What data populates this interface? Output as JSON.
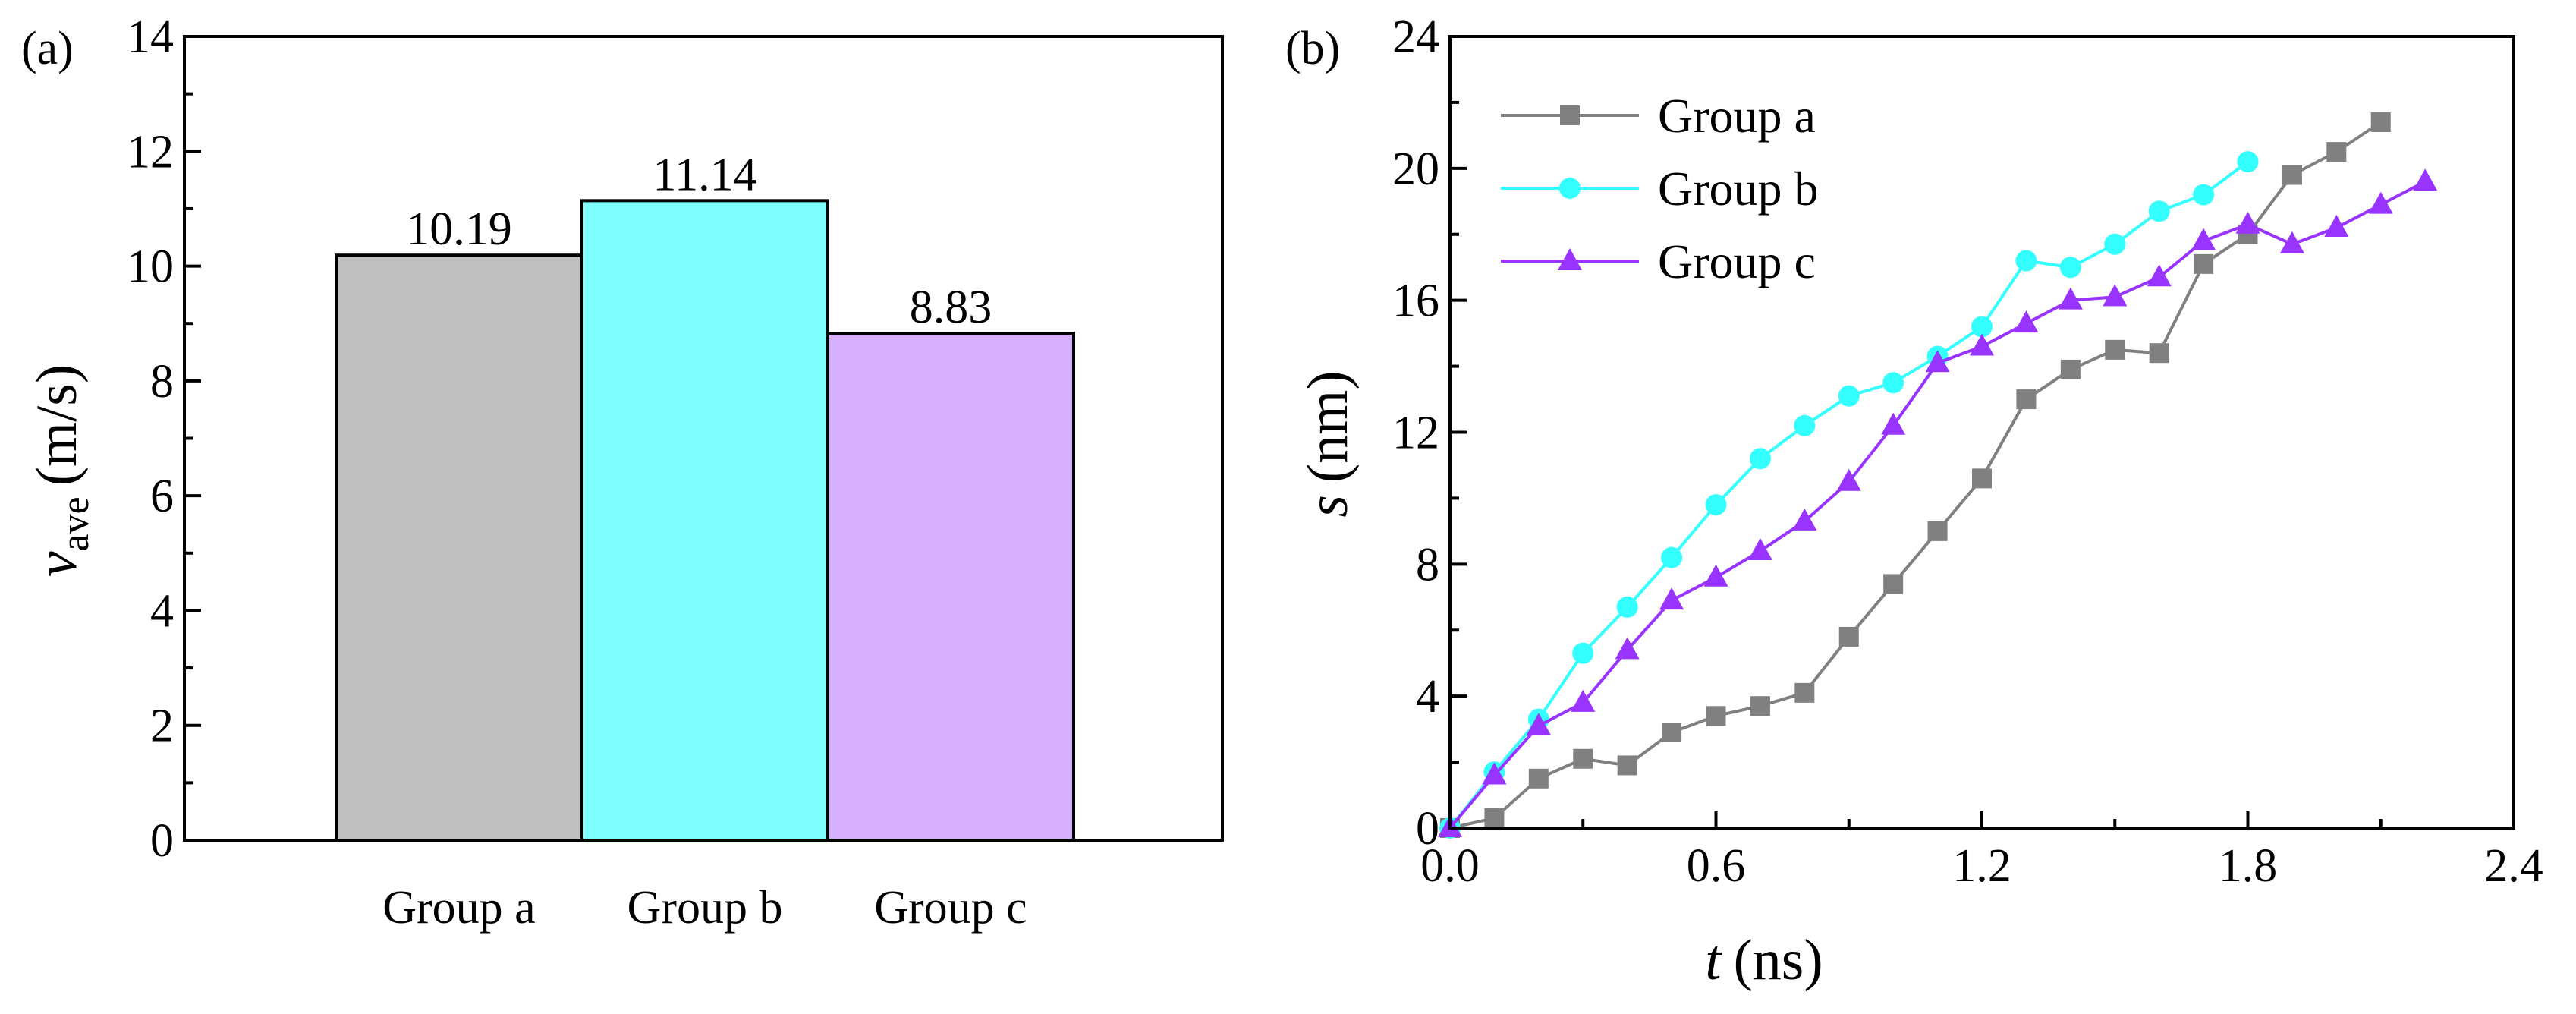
{
  "chart_data": [
    {
      "type": "bar",
      "panel_label": "(a)",
      "categories": [
        "Group a",
        "Group b",
        "Group c"
      ],
      "values": [
        10.19,
        11.14,
        8.83
      ],
      "value_labels": [
        "10.19",
        "11.14",
        "8.83"
      ],
      "colors": [
        "#c0c0c0",
        "#80ffff",
        "#d6b0ff"
      ],
      "ylabel_main": "v",
      "ylabel_sub": "ave",
      "ylabel_unit": "(m/s)",
      "ylim": [
        0,
        14
      ],
      "yticks": [
        "0",
        "2",
        "4",
        "6",
        "8",
        "10",
        "12",
        "14"
      ],
      "yticks_values": [
        0,
        2,
        4,
        6,
        8,
        10,
        12,
        14
      ]
    },
    {
      "type": "line",
      "panel_label": "(b)",
      "xlabel_var": "t",
      "xlabel_unit": "(ns)",
      "ylabel_var": "s",
      "ylabel_unit": "(nm)",
      "xlim": [
        0,
        2.4
      ],
      "ylim": [
        0,
        24
      ],
      "xticks": [
        "0.0",
        "0.6",
        "1.2",
        "1.8",
        "2.4"
      ],
      "xticks_values": [
        0,
        0.6,
        1.2,
        1.8,
        2.4
      ],
      "yticks": [
        "0",
        "4",
        "8",
        "12",
        "16",
        "20",
        "24"
      ],
      "yticks_values": [
        0,
        4,
        8,
        12,
        16,
        20,
        24
      ],
      "legend_position": "top-left",
      "series": [
        {
          "name": "Group a",
          "marker": "square",
          "color": "#808080",
          "x": [
            0,
            0.1,
            0.2,
            0.3,
            0.4,
            0.5,
            0.6,
            0.7,
            0.8,
            0.9,
            1.0,
            1.1,
            1.2,
            1.3,
            1.4,
            1.5,
            1.6,
            1.7,
            1.8,
            1.9,
            2.0,
            2.1
          ],
          "y": [
            0,
            0.3,
            1.5,
            2.1,
            1.9,
            2.9,
            3.4,
            3.7,
            4.1,
            5.8,
            7.4,
            9.0,
            10.6,
            13.0,
            13.9,
            14.5,
            14.4,
            17.1,
            18.0,
            19.8,
            20.5,
            21.4
          ]
        },
        {
          "name": "Group b",
          "marker": "circle",
          "color": "#33ffff",
          "x": [
            0,
            0.1,
            0.2,
            0.3,
            0.4,
            0.5,
            0.6,
            0.7,
            0.8,
            0.9,
            1.0,
            1.1,
            1.2,
            1.3,
            1.4,
            1.5,
            1.6,
            1.7,
            1.8
          ],
          "y": [
            0,
            1.7,
            3.3,
            5.3,
            6.7,
            8.2,
            9.8,
            11.2,
            12.2,
            13.1,
            13.5,
            14.3,
            15.2,
            17.2,
            17.0,
            17.7,
            18.7,
            19.2,
            20.2
          ]
        },
        {
          "name": "Group c",
          "marker": "triangle",
          "color": "#9933ff",
          "x": [
            0,
            0.1,
            0.2,
            0.3,
            0.4,
            0.5,
            0.6,
            0.7,
            0.8,
            0.9,
            1.0,
            1.1,
            1.2,
            1.3,
            1.4,
            1.5,
            1.6,
            1.7,
            1.8,
            1.9,
            2.0,
            2.1,
            2.2
          ],
          "y": [
            0,
            1.6,
            3.1,
            3.8,
            5.4,
            6.9,
            7.6,
            8.4,
            9.3,
            10.5,
            12.2,
            14.1,
            14.6,
            15.3,
            16.0,
            16.1,
            16.7,
            17.8,
            18.3,
            17.7,
            18.2,
            18.9,
            19.6
          ]
        }
      ]
    }
  ]
}
